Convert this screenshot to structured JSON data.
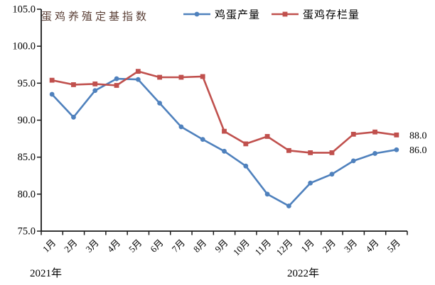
{
  "colors": {
    "egg_production_line": "#4F81BD",
    "hen_inventory_line": "#C0504D",
    "title_text": "#5B4037",
    "axis": "#1a1a1a"
  },
  "chart_data": {
    "type": "line",
    "title": "蛋鸡养殖定基指数",
    "xlabel": "",
    "ylabel": "",
    "ylim": [
      75.0,
      105.0
    ],
    "y_ticks": [
      105.0,
      100.0,
      95.0,
      90.0,
      85.0,
      80.0,
      75.0
    ],
    "y_tick_format_decimals": 1,
    "grid": false,
    "legend_position": "top",
    "categories": [
      "1月",
      "2月",
      "3月",
      "4月",
      "5月",
      "6月",
      "7月",
      "8月",
      "9月",
      "10月",
      "11月",
      "12月",
      "1月",
      "2月",
      "3月",
      "4月",
      "5月"
    ],
    "year_groups": [
      {
        "label": "2021年"
      },
      {
        "label": "2022年"
      }
    ],
    "series": [
      {
        "name": "鸡蛋产量",
        "marker": "circle",
        "color": "#4F81BD",
        "values": [
          93.5,
          90.4,
          94.0,
          95.6,
          95.5,
          92.3,
          89.1,
          87.4,
          85.8,
          83.8,
          80.0,
          78.4,
          81.5,
          82.7,
          84.5,
          85.5,
          86.0
        ],
        "end_label": "86.0"
      },
      {
        "name": "蛋鸡存栏量",
        "marker": "square",
        "color": "#C0504D",
        "values": [
          95.4,
          94.8,
          94.9,
          94.7,
          96.6,
          95.8,
          95.8,
          95.9,
          88.5,
          86.8,
          87.8,
          85.9,
          85.6,
          85.6,
          88.1,
          88.4,
          88.0
        ],
        "end_label": "88.0"
      }
    ]
  }
}
